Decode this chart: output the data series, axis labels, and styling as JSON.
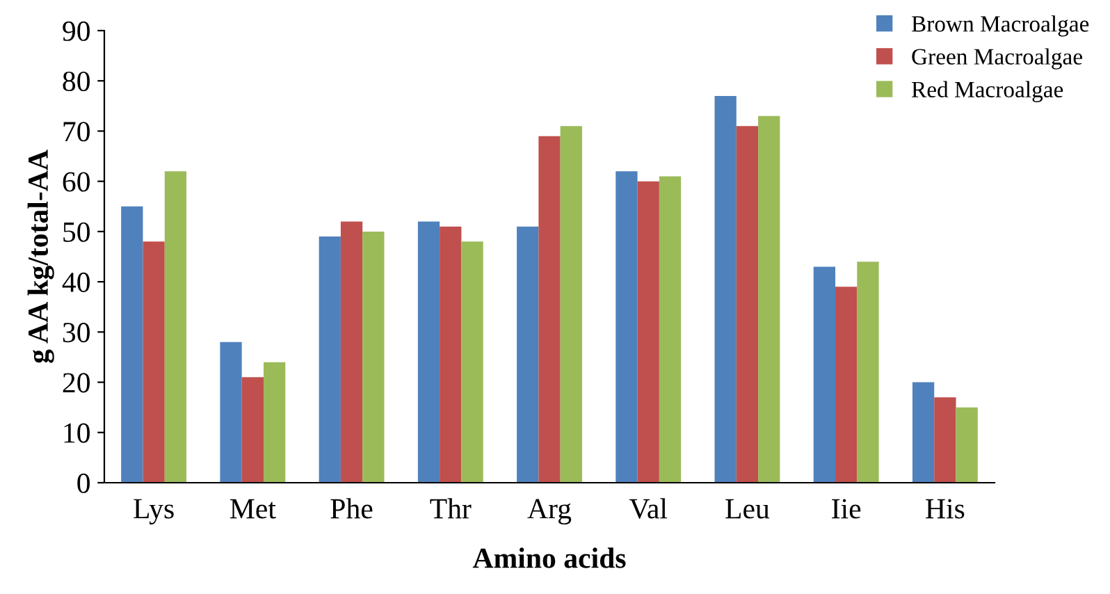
{
  "chart_data": {
    "type": "bar",
    "xlabel": "Amino acids",
    "ylabel": "g AA kg/total-AA",
    "categories": [
      "Lys",
      "Met",
      "Phe",
      "Thr",
      "Arg",
      "Val",
      "Leu",
      "Iie",
      "His"
    ],
    "series": [
      {
        "name": "Brown Macroalgae",
        "color": "#4f81bd",
        "values": [
          55,
          28,
          49,
          52,
          51,
          62,
          77,
          43,
          20
        ]
      },
      {
        "name": "Green Macroalgae",
        "color": "#c0504d",
        "values": [
          48,
          21,
          52,
          51,
          69,
          60,
          71,
          39,
          17
        ]
      },
      {
        "name": "Red Macroalgae",
        "color": "#9bbb59",
        "values": [
          62,
          24,
          50,
          48,
          71,
          61,
          73,
          44,
          15
        ]
      }
    ],
    "ylim": [
      0,
      90
    ],
    "yticks": [
      0,
      10,
      20,
      30,
      40,
      50,
      60,
      70,
      80,
      90
    ],
    "grid": false,
    "legend": "top right"
  }
}
